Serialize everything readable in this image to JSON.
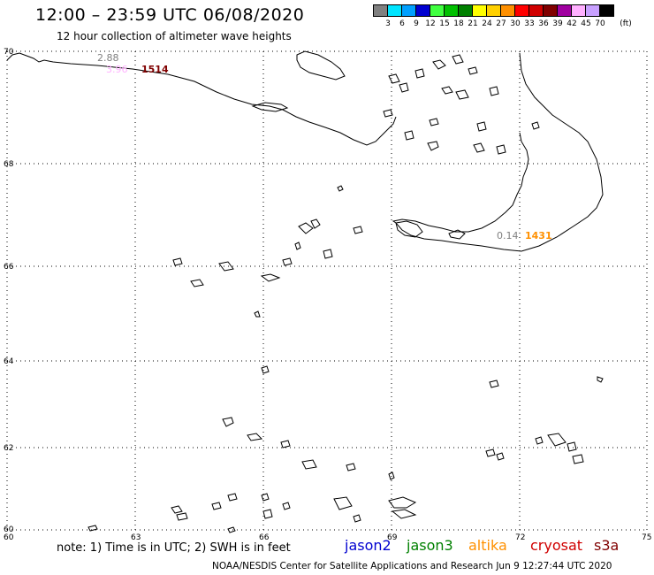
{
  "title": "12:00 – 23:59 UTC 06/08/2020",
  "subtitle": "12 hour collection of altimeter wave heights",
  "legend": {
    "unit": "(ft)",
    "levels": [
      "3",
      "6",
      "9",
      "12",
      "15",
      "18",
      "21",
      "24",
      "27",
      "30",
      "33",
      "36",
      "39",
      "42",
      "45",
      "70"
    ],
    "colors": [
      "#808080",
      "#00e5ff",
      "#00a0ff",
      "#0000d0",
      "#40ff40",
      "#00c000",
      "#008000",
      "#ffff00",
      "#ffd000",
      "#ff9000",
      "#ff0000",
      "#d00000",
      "#800000",
      "#a000a0",
      "#ffb0ff",
      "#c8a0ff",
      "#000000"
    ]
  },
  "map": {
    "lat_ticks": [
      "70",
      "68",
      "66",
      "64",
      "62",
      "60"
    ],
    "lon_ticks": [
      "60",
      "63",
      "66",
      "69",
      "72",
      "75"
    ],
    "track_labels": [
      {
        "text": "2.88",
        "color": "#808080"
      },
      {
        "text": "3.96",
        "color": "#ffb0ff"
      },
      {
        "text": "1514",
        "color": "#800000"
      },
      {
        "text": "0.14",
        "color": "#808080"
      },
      {
        "text": "1431",
        "color": "#ff9000"
      }
    ]
  },
  "note": "note: 1) Time is in UTC; 2) SWH is in feet",
  "satellites": [
    {
      "name": "jason2",
      "color": "#0000d0"
    },
    {
      "name": "jason3",
      "color": "#008000"
    },
    {
      "name": "altika",
      "color": "#ff9000"
    },
    {
      "name": "cryosat",
      "color": "#d00000"
    },
    {
      "name": "s3a",
      "color": "#800000"
    }
  ],
  "footer": "NOAA/NESDIS Center for Satellite Applications and Research   Jun  9 12:27:44 UTC 2020"
}
